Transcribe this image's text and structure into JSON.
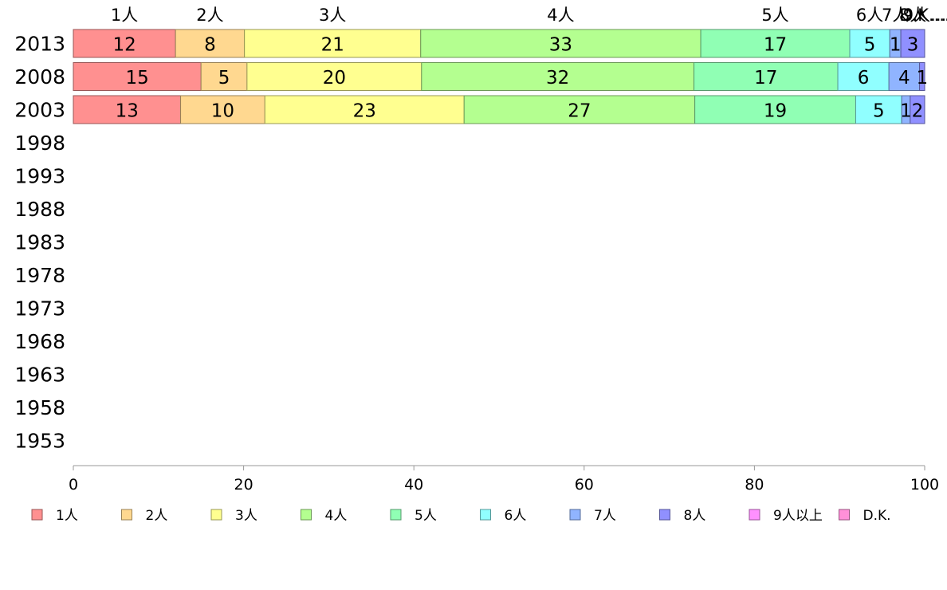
{
  "chart_data": {
    "type": "bar",
    "orientation": "horizontal",
    "stacked": true,
    "categories": [
      "2013",
      "2008",
      "2003",
      "1998",
      "1993",
      "1988",
      "1983",
      "1978",
      "1973",
      "1968",
      "1963",
      "1958",
      "1953"
    ],
    "series": [
      {
        "name": "1人",
        "color": "#ff9090",
        "values": [
          12.0,
          15.0,
          12.6,
          null,
          null,
          null,
          null,
          null,
          null,
          null,
          null,
          null,
          null
        ]
      },
      {
        "name": "2人",
        "color": "#ffd890",
        "values": [
          8.1,
          5.4,
          9.9,
          null,
          null,
          null,
          null,
          null,
          null,
          null,
          null,
          null,
          null
        ]
      },
      {
        "name": "3人",
        "color": "#ffff90",
        "values": [
          20.7,
          20.5,
          23.4,
          null,
          null,
          null,
          null,
          null,
          null,
          null,
          null,
          null,
          null
        ]
      },
      {
        "name": "4人",
        "color": "#b4ff90",
        "values": [
          32.9,
          32.0,
          27.1,
          null,
          null,
          null,
          null,
          null,
          null,
          null,
          null,
          null,
          null
        ]
      },
      {
        "name": "5人",
        "color": "#90ffb4",
        "values": [
          17.5,
          16.9,
          18.9,
          null,
          null,
          null,
          null,
          null,
          null,
          null,
          null,
          null,
          null
        ]
      },
      {
        "name": "6人",
        "color": "#90ffff",
        "values": [
          4.7,
          6.0,
          5.4,
          null,
          null,
          null,
          null,
          null,
          null,
          null,
          null,
          null,
          null
        ]
      },
      {
        "name": "7人",
        "color": "#90b4ff",
        "values": [
          1.3,
          3.6,
          1.0,
          null,
          null,
          null,
          null,
          null,
          null,
          null,
          null,
          null,
          null
        ]
      },
      {
        "name": "8人",
        "color": "#9090ff",
        "values": [
          2.8,
          0.6,
          1.7,
          null,
          null,
          null,
          null,
          null,
          null,
          null,
          null,
          null,
          null
        ]
      },
      {
        "name": "9人以上",
        "color": "#ff90ff",
        "values": [
          0,
          0,
          0,
          null,
          null,
          null,
          null,
          null,
          null,
          null,
          null,
          null,
          null
        ]
      },
      {
        "name": "D.K.",
        "color": "#ff90d8",
        "values": [
          0,
          0,
          0,
          null,
          null,
          null,
          null,
          null,
          null,
          null,
          null,
          null,
          null
        ]
      }
    ],
    "data_labels": [
      [
        "12",
        "8",
        "21",
        "33",
        "17",
        "5",
        "1",
        "3",
        "",
        ""
      ],
      [
        "15",
        "5",
        "20",
        "32",
        "17",
        "6",
        "4",
        "1",
        "",
        ""
      ],
      [
        "13",
        "10",
        "23",
        "27",
        "19",
        "5",
        "1",
        "2",
        "",
        ""
      ]
    ],
    "top_labels": [
      "1人",
      "2人",
      "3人",
      "4人",
      "5人",
      "6人",
      "7人",
      "8人",
      "9人...",
      "D.K...."
    ],
    "x_ticks": [
      0,
      20,
      40,
      60,
      80,
      100
    ],
    "xlim": [
      0,
      100
    ],
    "xlabel": "",
    "ylabel": "",
    "title": "",
    "grid": false,
    "legend_position": "bottom"
  }
}
